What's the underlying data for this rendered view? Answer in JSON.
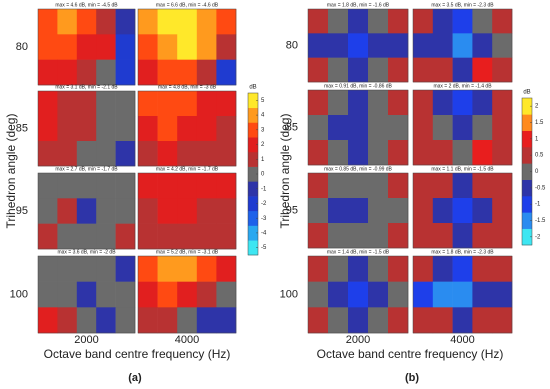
{
  "chart_data": [
    {
      "type": "heatmap",
      "panel_label": "(a)",
      "xlabel": "Octave band centre frequency (Hz)",
      "ylabel": "Trihedron angle (deg)",
      "row_labels": [
        "80",
        "85",
        "95",
        "100"
      ],
      "column_labels": [
        "2000",
        "4000"
      ],
      "colorbar": {
        "label": "dB",
        "lim": [
          -5.5,
          5.5
        ],
        "ticks": [
          5,
          4,
          3,
          2,
          1,
          0,
          -1,
          -2,
          -3,
          -4,
          -5
        ],
        "colors": [
          "#3ee6f2",
          "#2aa8f0",
          "#1e62ea",
          "#1f3bd0",
          "#2e34a8",
          "#6b6b6b",
          "#b83232",
          "#e11f1f",
          "#ff4a12",
          "#ff9a1e",
          "#ffe82a"
        ]
      },
      "cells": [
        [
          {
            "title": "max = 4.6 dB, min = -4.5 dB",
            "values": [
              [
                3,
                3.5,
                3,
                1,
                -1
              ],
              [
                2.5,
                3,
                2,
                1.5,
                -2
              ],
              [
                2,
                1.5,
                0.5,
                0,
                -2.5
              ]
            ]
          },
          {
            "title": "max = 6.6 dB, min = -4.6 dB",
            "values": [
              [
                4,
                5,
                5.5,
                4,
                3
              ],
              [
                3,
                4,
                5,
                3.5,
                1
              ],
              [
                2,
                3,
                2.5,
                1,
                -2
              ]
            ]
          }
        ],
        [
          {
            "title": "max = 3.1 dB, min = -2.1 dB",
            "values": [
              [
                1.5,
                1,
                0.5,
                0,
                0
              ],
              [
                1.5,
                1,
                0.5,
                0,
                -0.5
              ],
              [
                1,
                0.5,
                0,
                0,
                -1
              ]
            ]
          },
          {
            "title": "max = 4.8 dB, min = -3 dB",
            "values": [
              [
                2.5,
                3,
                2.5,
                2,
                2
              ],
              [
                2,
                2.5,
                2,
                1.5,
                1
              ],
              [
                1,
                1.5,
                1,
                1,
                0.5
              ]
            ]
          }
        ],
        [
          {
            "title": "max = 2.7 dB, min = -1.7 dB",
            "values": [
              [
                0,
                0,
                0,
                -0.5,
                0
              ],
              [
                0,
                0.5,
                -1,
                0,
                0
              ],
              [
                0.5,
                0,
                0,
                -0.5,
                0.5
              ]
            ]
          },
          {
            "title": "max = 4.2 dB, min = -1.7 dB",
            "values": [
              [
                1.5,
                2,
                2,
                2,
                1.5
              ],
              [
                1,
                1.5,
                1.5,
                1,
                1
              ],
              [
                1,
                1,
                1,
                0.5,
                1
              ]
            ]
          }
        ],
        [
          {
            "title": "max = 3.6 dB, min = -2 dB",
            "values": [
              [
                0,
                0,
                0,
                0,
                -1
              ],
              [
                0,
                -0.5,
                -1,
                -0.5,
                0
              ],
              [
                1.5,
                1,
                0,
                -1,
                0
              ]
            ]
          },
          {
            "title": "max = 5.2 dB, min = -3.1 dB",
            "values": [
              [
                3,
                4,
                4,
                3,
                2
              ],
              [
                2,
                2.5,
                2,
                1,
                -0.5
              ],
              [
                1,
                0.5,
                0,
                -1,
                -1.5
              ]
            ]
          }
        ]
      ]
    },
    {
      "type": "heatmap",
      "panel_label": "(b)",
      "xlabel": "Octave band centre frequency (Hz)",
      "ylabel": "Trihedron angle (deg)",
      "row_labels": [
        "80",
        "85",
        "95",
        "100"
      ],
      "column_labels": [
        "2000",
        "4000"
      ],
      "colorbar": {
        "label": "dB",
        "lim": [
          -2.25,
          2.25
        ],
        "ticks": [
          2,
          1.5,
          1,
          0.5,
          0,
          -0.5,
          -1,
          -1.5,
          -2
        ],
        "colors": [
          "#3ee6f2",
          "#2a8cf0",
          "#1e3fea",
          "#2e34a8",
          "#6b6b6b",
          "#b83232",
          "#e81e1e",
          "#ff8a1e",
          "#ffe82a"
        ]
      },
      "cells": [
        [
          {
            "title": "max = 1.8 dB, min = -1.6 dB",
            "values": [
              [
                0.5,
                0,
                -0.5,
                0,
                0.5
              ],
              [
                -0.5,
                -0.5,
                -1,
                -0.5,
                -0.5
              ],
              [
                0.5,
                0,
                -0.5,
                0,
                0.5
              ]
            ]
          },
          {
            "title": "max = 3.5 dB, min = -2.3 dB",
            "values": [
              [
                0.5,
                -0.5,
                -1,
                0,
                0.5
              ],
              [
                -0.5,
                -0.5,
                -1.5,
                -0.5,
                0
              ],
              [
                0.5,
                0.5,
                -0.5,
                1,
                0.5
              ]
            ]
          }
        ],
        [
          {
            "title": "max = 0.91 dB, min = -0.86 dB",
            "values": [
              [
                0.5,
                0,
                -0.5,
                0,
                0.5
              ],
              [
                0,
                -0.5,
                -0.5,
                0,
                0
              ],
              [
                0.5,
                0,
                -0.5,
                0,
                0.5
              ]
            ]
          },
          {
            "title": "max = 2 dB, min = -1.4 dB",
            "values": [
              [
                0.5,
                -0.5,
                -1,
                -0.5,
                0.5
              ],
              [
                0.5,
                0,
                -0.5,
                0,
                0.5
              ],
              [
                0.5,
                0.5,
                0,
                1,
                0.5
              ]
            ]
          }
        ],
        [
          {
            "title": "max = 0.85 dB, min = -0.99 dB",
            "values": [
              [
                0.5,
                0,
                0,
                0,
                0.5
              ],
              [
                0,
                -0.5,
                -0.5,
                0,
                0
              ],
              [
                0.5,
                0,
                0,
                0,
                0.5
              ]
            ]
          },
          {
            "title": "max = 1.1 dB, min = -1.5 dB",
            "values": [
              [
                0.5,
                0.5,
                -0.5,
                0.5,
                0.5
              ],
              [
                0.5,
                -0.5,
                -1,
                -0.5,
                0.5
              ],
              [
                0.5,
                0.5,
                -0.5,
                0.5,
                0.5
              ]
            ]
          }
        ],
        [
          {
            "title": "max = 1.4 dB, min = -1.5 dB",
            "values": [
              [
                0.5,
                0,
                -0.5,
                0,
                0.5
              ],
              [
                0,
                -0.5,
                -1,
                -0.5,
                0
              ],
              [
                0.5,
                0,
                -0.5,
                0,
                0.5
              ]
            ]
          },
          {
            "title": "max = 1.8 dB, min = -2.3 dB",
            "values": [
              [
                0.5,
                -0.5,
                -1,
                0.5,
                0.5
              ],
              [
                -1,
                -1.5,
                -1.5,
                -0.5,
                -0.5
              ],
              [
                0.5,
                0.5,
                -0.5,
                0.5,
                0.5
              ]
            ]
          }
        ]
      ]
    }
  ]
}
